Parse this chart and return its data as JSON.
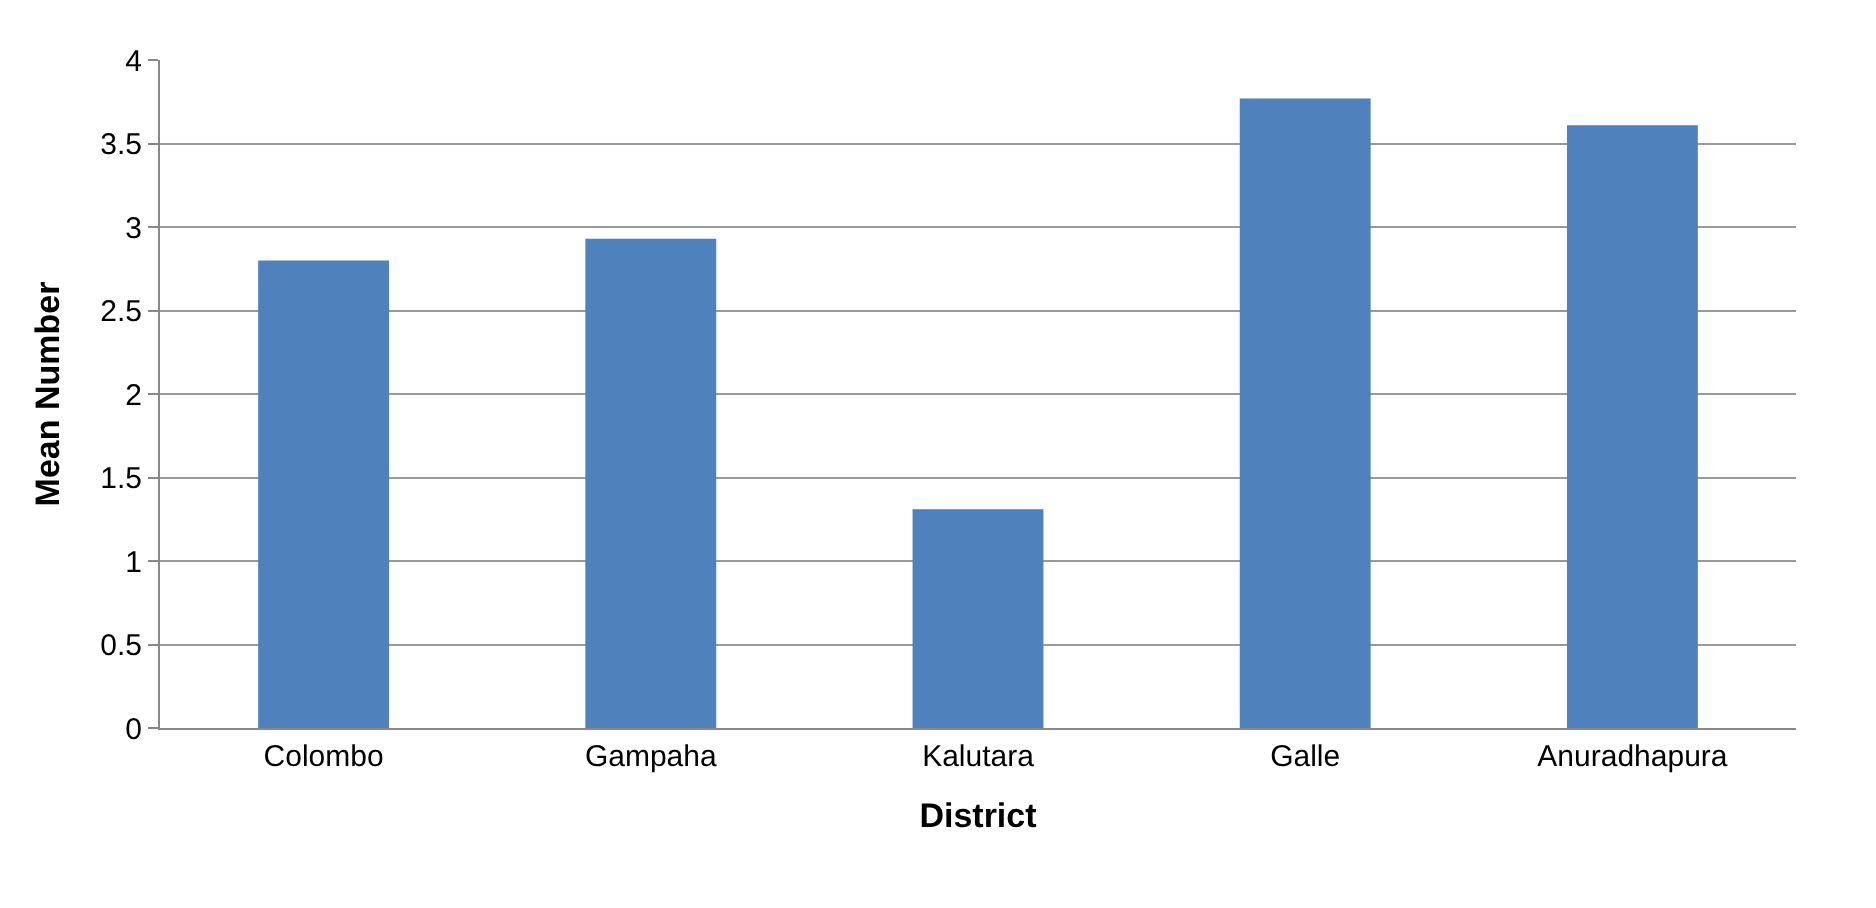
{
  "chart_data": {
    "type": "bar",
    "xlabel": "District",
    "ylabel": "Mean Number",
    "categories": [
      "Colombo",
      "Gampaha",
      "Kalutara",
      "Galle",
      "Anuradhapura"
    ],
    "values": [
      2.8,
      2.93,
      1.31,
      3.77,
      3.61
    ],
    "color": "#4f81bd",
    "ylim": [
      0,
      4
    ],
    "yticks": [
      0,
      0.5,
      1,
      1.5,
      2,
      2.5,
      3,
      3.5,
      4
    ],
    "grid": "y",
    "legend": false
  }
}
